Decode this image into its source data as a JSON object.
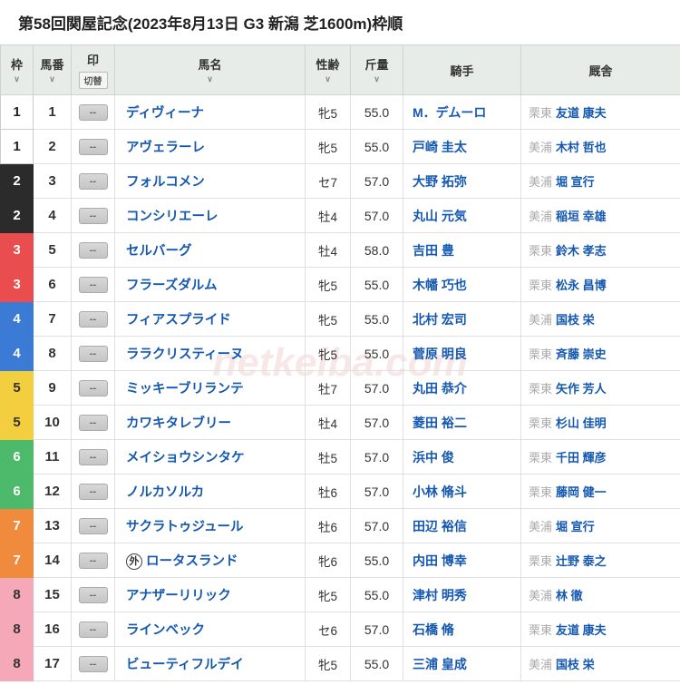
{
  "title": "第58回関屋記念(2023年8月13日 G3 新潟 芝1600m)枠順",
  "watermark": "netkeiba.com",
  "columns": {
    "waku": "枠",
    "num": "馬番",
    "mark": "印",
    "mark_sub": "切替",
    "name": "馬名",
    "age": "性齢",
    "wt": "斤量",
    "jockey": "騎手",
    "stable": "厩舎"
  },
  "col_widths": {
    "waku": 36,
    "num": 42,
    "mark": 48,
    "name": 210,
    "age": 50,
    "wt": 58,
    "jockey": 130,
    "stable": 176
  },
  "waku_colors": {
    "1": {
      "bg": "#ffffff",
      "fg": "#222222"
    },
    "2": {
      "bg": "#2b2b2b",
      "fg": "#ffffff"
    },
    "3": {
      "bg": "#e94d4d",
      "fg": "#ffffff"
    },
    "4": {
      "bg": "#3b7bd6",
      "fg": "#ffffff"
    },
    "5": {
      "bg": "#f3cf3f",
      "fg": "#333333"
    },
    "6": {
      "bg": "#4db96b",
      "fg": "#ffffff"
    },
    "7": {
      "bg": "#f08a3c",
      "fg": "#ffffff"
    },
    "8": {
      "bg": "#f5a8b8",
      "fg": "#333333"
    }
  },
  "mark_label": "--",
  "rows": [
    {
      "waku": "1",
      "num": "1",
      "name": "ディヴィーナ",
      "age": "牝5",
      "wt": "55.0",
      "jockey": "M．デムーロ",
      "loc": "栗東",
      "trainer": "友道 康夫"
    },
    {
      "waku": "1",
      "num": "2",
      "name": "アヴェラーレ",
      "age": "牝5",
      "wt": "55.0",
      "jockey": "戸崎 圭太",
      "loc": "美浦",
      "trainer": "木村 哲也"
    },
    {
      "waku": "2",
      "num": "3",
      "name": "フォルコメン",
      "age": "セ7",
      "wt": "57.0",
      "jockey": "大野 拓弥",
      "loc": "美浦",
      "trainer": "堀 宣行"
    },
    {
      "waku": "2",
      "num": "4",
      "name": "コンシリエーレ",
      "age": "牡4",
      "wt": "57.0",
      "jockey": "丸山 元気",
      "loc": "美浦",
      "trainer": "稲垣 幸雄"
    },
    {
      "waku": "3",
      "num": "5",
      "name": "セルバーグ",
      "age": "牡4",
      "wt": "58.0",
      "jockey": "吉田 豊",
      "loc": "栗東",
      "trainer": "鈴木 孝志"
    },
    {
      "waku": "3",
      "num": "6",
      "name": "フラーズダルム",
      "age": "牝5",
      "wt": "55.0",
      "jockey": "木幡 巧也",
      "loc": "栗東",
      "trainer": "松永 昌博"
    },
    {
      "waku": "4",
      "num": "7",
      "name": "フィアスプライド",
      "age": "牝5",
      "wt": "55.0",
      "jockey": "北村 宏司",
      "loc": "美浦",
      "trainer": "国枝 栄"
    },
    {
      "waku": "4",
      "num": "8",
      "name": "ララクリスティーヌ",
      "age": "牝5",
      "wt": "55.0",
      "jockey": "菅原 明良",
      "loc": "栗東",
      "trainer": "斉藤 崇史"
    },
    {
      "waku": "5",
      "num": "9",
      "name": "ミッキーブリランテ",
      "age": "牡7",
      "wt": "57.0",
      "jockey": "丸田 恭介",
      "loc": "栗東",
      "trainer": "矢作 芳人"
    },
    {
      "waku": "5",
      "num": "10",
      "name": "カワキタレブリー",
      "age": "牡4",
      "wt": "57.0",
      "jockey": "菱田 裕二",
      "loc": "栗東",
      "trainer": "杉山 佳明"
    },
    {
      "waku": "6",
      "num": "11",
      "name": "メイショウシンタケ",
      "age": "牡5",
      "wt": "57.0",
      "jockey": "浜中 俊",
      "loc": "栗東",
      "trainer": "千田 輝彦"
    },
    {
      "waku": "6",
      "num": "12",
      "name": "ノルカソルカ",
      "age": "牡6",
      "wt": "57.0",
      "jockey": "小林 脩斗",
      "loc": "栗東",
      "trainer": "藤岡 健一"
    },
    {
      "waku": "7",
      "num": "13",
      "name": "サクラトゥジュール",
      "age": "牡6",
      "wt": "57.0",
      "jockey": "田辺 裕信",
      "loc": "美浦",
      "trainer": "堀 宣行"
    },
    {
      "waku": "7",
      "num": "14",
      "gai": true,
      "name": "ロータスランド",
      "age": "牝6",
      "wt": "55.0",
      "jockey": "内田 博幸",
      "loc": "栗東",
      "trainer": "辻野 泰之"
    },
    {
      "waku": "8",
      "num": "15",
      "name": "アナザーリリック",
      "age": "牝5",
      "wt": "55.0",
      "jockey": "津村 明秀",
      "loc": "美浦",
      "trainer": "林 徹"
    },
    {
      "waku": "8",
      "num": "16",
      "name": "ラインベック",
      "age": "セ6",
      "wt": "57.0",
      "jockey": "石橋 脩",
      "loc": "栗東",
      "trainer": "友道 康夫"
    },
    {
      "waku": "8",
      "num": "17",
      "name": "ビューティフルデイ",
      "age": "牝5",
      "wt": "55.0",
      "jockey": "三浦 皇成",
      "loc": "美浦",
      "trainer": "国枝 栄"
    }
  ]
}
